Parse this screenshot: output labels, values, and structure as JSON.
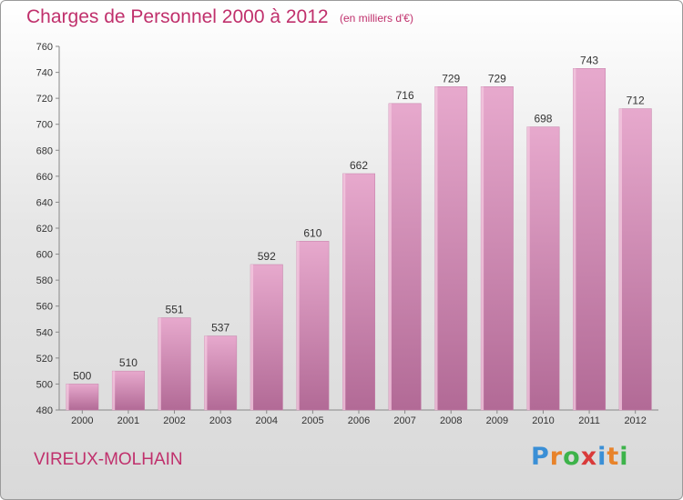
{
  "header": {
    "title": "Charges de Personnel 2000 à 2012",
    "subtitle": "(en milliers d'€)"
  },
  "footer": {
    "commune": "VIREUX-MOLHAIN",
    "logo": {
      "letters": [
        "P",
        "r",
        "o",
        "x",
        "i",
        "t",
        "i"
      ],
      "colors": [
        "#3a8fd6",
        "#e8832a",
        "#3db34a",
        "#d93a3a",
        "#3a8fd6",
        "#e8832a",
        "#3db34a"
      ]
    }
  },
  "chart_data": {
    "type": "bar",
    "categories": [
      "2000",
      "2001",
      "2002",
      "2003",
      "2004",
      "2005",
      "2006",
      "2007",
      "2008",
      "2009",
      "2010",
      "2011",
      "2012"
    ],
    "values": [
      500,
      510,
      551,
      537,
      592,
      610,
      662,
      716,
      729,
      729,
      698,
      743,
      712
    ],
    "ylim": [
      480,
      760
    ],
    "yticks": [
      480,
      500,
      520,
      540,
      560,
      580,
      600,
      620,
      640,
      660,
      680,
      700,
      720,
      740,
      760
    ],
    "grid": false,
    "bar_color": "#d98ab7",
    "data_labels": true
  }
}
